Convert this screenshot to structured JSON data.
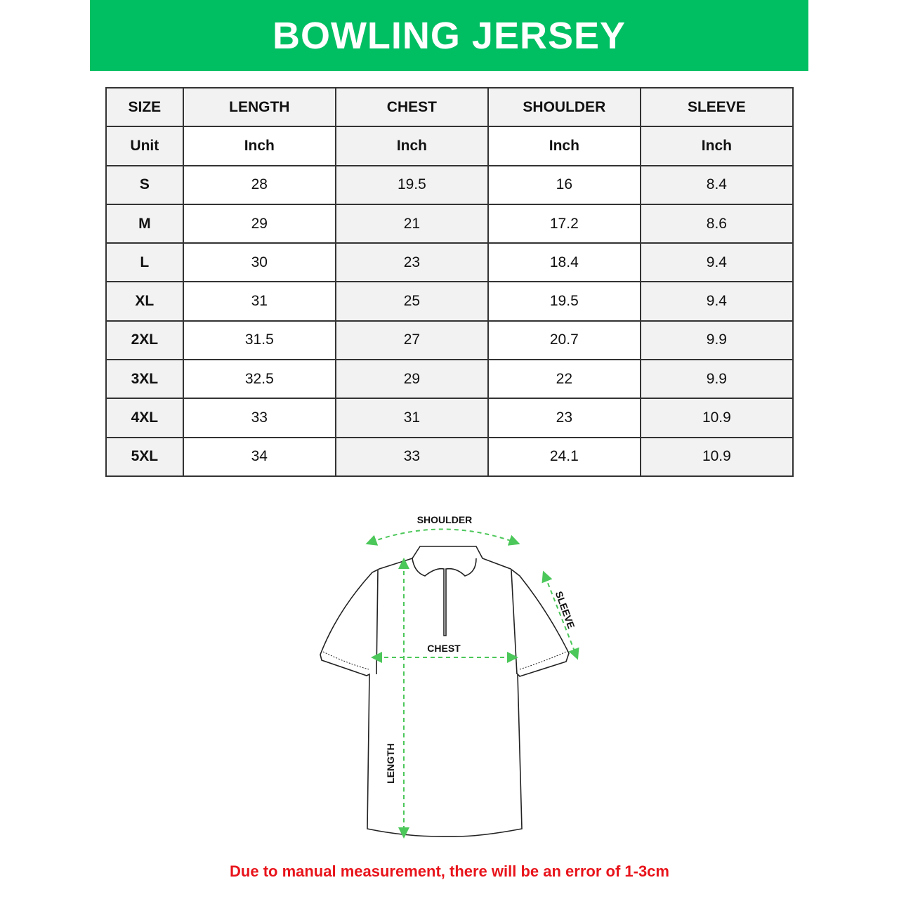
{
  "title": "BOWLING JERSEY",
  "colors": {
    "banner": "#00bf63",
    "arrows": "#4cc75a",
    "note": "#e8141b"
  },
  "table": {
    "headers": [
      "SIZE",
      "LENGTH",
      "CHEST",
      "SHOULDER",
      "SLEEVE"
    ],
    "unit_row": [
      "Unit",
      "Inch",
      "Inch",
      "Inch",
      "Inch"
    ],
    "rows": [
      [
        "S",
        "28",
        "19.5",
        "16",
        "8.4"
      ],
      [
        "M",
        "29",
        "21",
        "17.2",
        "8.6"
      ],
      [
        "L",
        "30",
        "23",
        "18.4",
        "9.4"
      ],
      [
        "XL",
        "31",
        "25",
        "19.5",
        "9.4"
      ],
      [
        "2XL",
        "31.5",
        "27",
        "20.7",
        "9.9"
      ],
      [
        "3XL",
        "32.5",
        "29",
        "22",
        "9.9"
      ],
      [
        "4XL",
        "33",
        "31",
        "23",
        "10.9"
      ],
      [
        "5XL",
        "34",
        "33",
        "24.1",
        "10.9"
      ]
    ]
  },
  "diagram": {
    "shoulder": "SHOULDER",
    "chest": "CHEST",
    "sleeve": "SLEEVE",
    "length": "LENGTH"
  },
  "note": "Due to manual measurement, there will be an error of 1-3cm"
}
